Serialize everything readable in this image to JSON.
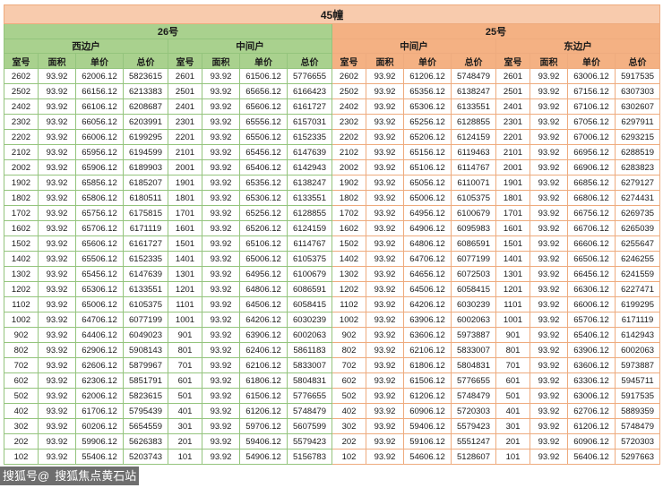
{
  "title": "45幢",
  "column_headers": [
    "室号",
    "面积",
    "单价",
    "总价"
  ],
  "building_groups": [
    {
      "name": "26号",
      "sections": [
        "西边户",
        "中间户"
      ]
    },
    {
      "name": "25号",
      "sections": [
        "中间户",
        "东边户"
      ]
    }
  ],
  "colors": {
    "title_bg": "#f8cbad",
    "green_header_bg": "#a9d18e",
    "green_border": "#94c47d",
    "orange_header_bg": "#f4b183",
    "orange_border": "#eeab7e"
  },
  "watermark": {
    "prefix": "搜狐号@",
    "name": "搜狐焦点黄石站"
  },
  "rows": [
    [
      "2602",
      "93.92",
      "62006.12",
      "5823615",
      "2601",
      "93.92",
      "61506.12",
      "5776655",
      "2602",
      "93.92",
      "61206.12",
      "5748479",
      "2601",
      "93.92",
      "63006.12",
      "5917535"
    ],
    [
      "2502",
      "93.92",
      "66156.12",
      "6213383",
      "2501",
      "93.92",
      "65656.12",
      "6166423",
      "2502",
      "93.92",
      "65356.12",
      "6138247",
      "2501",
      "93.92",
      "67156.12",
      "6307303"
    ],
    [
      "2402",
      "93.92",
      "66106.12",
      "6208687",
      "2401",
      "93.92",
      "65606.12",
      "6161727",
      "2402",
      "93.92",
      "65306.12",
      "6133551",
      "2401",
      "93.92",
      "67106.12",
      "6302607"
    ],
    [
      "2302",
      "93.92",
      "66056.12",
      "6203991",
      "2301",
      "93.92",
      "65556.12",
      "6157031",
      "2302",
      "93.92",
      "65256.12",
      "6128855",
      "2301",
      "93.92",
      "67056.12",
      "6297911"
    ],
    [
      "2202",
      "93.92",
      "66006.12",
      "6199295",
      "2201",
      "93.92",
      "65506.12",
      "6152335",
      "2202",
      "93.92",
      "65206.12",
      "6124159",
      "2201",
      "93.92",
      "67006.12",
      "6293215"
    ],
    [
      "2102",
      "93.92",
      "65956.12",
      "6194599",
      "2101",
      "93.92",
      "65456.12",
      "6147639",
      "2102",
      "93.92",
      "65156.12",
      "6119463",
      "2101",
      "93.92",
      "66956.12",
      "6288519"
    ],
    [
      "2002",
      "93.92",
      "65906.12",
      "6189903",
      "2001",
      "93.92",
      "65406.12",
      "6142943",
      "2002",
      "93.92",
      "65106.12",
      "6114767",
      "2001",
      "93.92",
      "66906.12",
      "6283823"
    ],
    [
      "1902",
      "93.92",
      "65856.12",
      "6185207",
      "1901",
      "93.92",
      "65356.12",
      "6138247",
      "1902",
      "93.92",
      "65056.12",
      "6110071",
      "1901",
      "93.92",
      "66856.12",
      "6279127"
    ],
    [
      "1802",
      "93.92",
      "65806.12",
      "6180511",
      "1801",
      "93.92",
      "65306.12",
      "6133551",
      "1802",
      "93.92",
      "65006.12",
      "6105375",
      "1801",
      "93.92",
      "66806.12",
      "6274431"
    ],
    [
      "1702",
      "93.92",
      "65756.12",
      "6175815",
      "1701",
      "93.92",
      "65256.12",
      "6128855",
      "1702",
      "93.92",
      "64956.12",
      "6100679",
      "1701",
      "93.92",
      "66756.12",
      "6269735"
    ],
    [
      "1602",
      "93.92",
      "65706.12",
      "6171119",
      "1601",
      "93.92",
      "65206.12",
      "6124159",
      "1602",
      "93.92",
      "64906.12",
      "6095983",
      "1601",
      "93.92",
      "66706.12",
      "6265039"
    ],
    [
      "1502",
      "93.92",
      "65606.12",
      "6161727",
      "1501",
      "93.92",
      "65106.12",
      "6114767",
      "1502",
      "93.92",
      "64806.12",
      "6086591",
      "1501",
      "93.92",
      "66606.12",
      "6255647"
    ],
    [
      "1402",
      "93.92",
      "65506.12",
      "6152335",
      "1401",
      "93.92",
      "65006.12",
      "6105375",
      "1402",
      "93.92",
      "64706.12",
      "6077199",
      "1401",
      "93.92",
      "66506.12",
      "6246255"
    ],
    [
      "1302",
      "93.92",
      "65456.12",
      "6147639",
      "1301",
      "93.92",
      "64956.12",
      "6100679",
      "1302",
      "93.92",
      "64656.12",
      "6072503",
      "1301",
      "93.92",
      "66456.12",
      "6241559"
    ],
    [
      "1202",
      "93.92",
      "65306.12",
      "6133551",
      "1201",
      "93.92",
      "64806.12",
      "6086591",
      "1202",
      "93.92",
      "64506.12",
      "6058415",
      "1201",
      "93.92",
      "66306.12",
      "6227471"
    ],
    [
      "1102",
      "93.92",
      "65006.12",
      "6105375",
      "1101",
      "93.92",
      "64506.12",
      "6058415",
      "1102",
      "93.92",
      "64206.12",
      "6030239",
      "1101",
      "93.92",
      "66006.12",
      "6199295"
    ],
    [
      "1002",
      "93.92",
      "64706.12",
      "6077199",
      "1001",
      "93.92",
      "64206.12",
      "6030239",
      "1002",
      "93.92",
      "63906.12",
      "6002063",
      "1001",
      "93.92",
      "65706.12",
      "6171119"
    ],
    [
      "902",
      "93.92",
      "64406.12",
      "6049023",
      "901",
      "93.92",
      "63906.12",
      "6002063",
      "902",
      "93.92",
      "63606.12",
      "5973887",
      "901",
      "93.92",
      "65406.12",
      "6142943"
    ],
    [
      "802",
      "93.92",
      "62906.12",
      "5908143",
      "801",
      "93.92",
      "62406.12",
      "5861183",
      "802",
      "93.92",
      "62106.12",
      "5833007",
      "801",
      "93.92",
      "63906.12",
      "6002063"
    ],
    [
      "702",
      "93.92",
      "62606.12",
      "5879967",
      "701",
      "93.92",
      "62106.12",
      "5833007",
      "702",
      "93.92",
      "61806.12",
      "5804831",
      "701",
      "93.92",
      "63606.12",
      "5973887"
    ],
    [
      "602",
      "93.92",
      "62306.12",
      "5851791",
      "601",
      "93.92",
      "61806.12",
      "5804831",
      "602",
      "93.92",
      "61506.12",
      "5776655",
      "601",
      "93.92",
      "63306.12",
      "5945711"
    ],
    [
      "502",
      "93.92",
      "62006.12",
      "5823615",
      "501",
      "93.92",
      "61506.12",
      "5776655",
      "502",
      "93.92",
      "61206.12",
      "5748479",
      "501",
      "93.92",
      "63006.12",
      "5917535"
    ],
    [
      "402",
      "93.92",
      "61706.12",
      "5795439",
      "401",
      "93.92",
      "61206.12",
      "5748479",
      "402",
      "93.92",
      "60906.12",
      "5720303",
      "401",
      "93.92",
      "62706.12",
      "5889359"
    ],
    [
      "302",
      "93.92",
      "60206.12",
      "5654559",
      "301",
      "93.92",
      "59706.12",
      "5607599",
      "302",
      "93.92",
      "59406.12",
      "5579423",
      "301",
      "93.92",
      "61206.12",
      "5748479"
    ],
    [
      "202",
      "93.92",
      "59906.12",
      "5626383",
      "201",
      "93.92",
      "59406.12",
      "5579423",
      "202",
      "93.92",
      "59106.12",
      "5551247",
      "201",
      "93.92",
      "60906.12",
      "5720303"
    ],
    [
      "102",
      "93.92",
      "55406.12",
      "5203743",
      "101",
      "93.92",
      "54906.12",
      "5156783",
      "102",
      "93.92",
      "54606.12",
      "5128607",
      "101",
      "93.92",
      "56406.12",
      "5297663"
    ]
  ]
}
